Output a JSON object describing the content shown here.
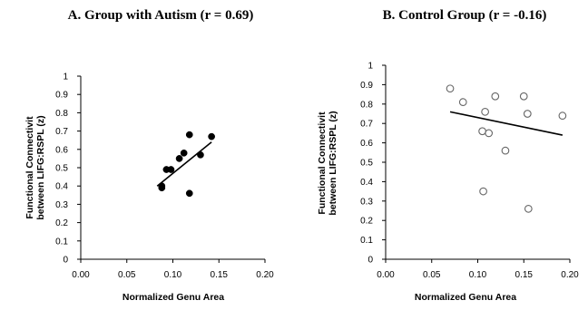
{
  "chart_data": [
    {
      "type": "scatter",
      "title": "A. Group with Autism (r = 0.69)",
      "xlabel": "Normalized Genu Area",
      "ylabel_line1": "Functional Connectivit",
      "ylabel_line2": "between LIFG:RSPL (z)",
      "xlim": [
        0.0,
        0.2
      ],
      "ylim": [
        0,
        1
      ],
      "xticks": [
        "0.00",
        "0.05",
        "0.10",
        "0.15",
        "0.20"
      ],
      "yticks": [
        "0",
        "0.1",
        "0.2",
        "0.3",
        "0.4",
        "0.5",
        "0.6",
        "0.7",
        "0.8",
        "0.9",
        "1"
      ],
      "marker": "filled",
      "points": [
        {
          "x": 0.088,
          "y": 0.4
        },
        {
          "x": 0.088,
          "y": 0.39
        },
        {
          "x": 0.093,
          "y": 0.49
        },
        {
          "x": 0.098,
          "y": 0.49
        },
        {
          "x": 0.107,
          "y": 0.55
        },
        {
          "x": 0.112,
          "y": 0.58
        },
        {
          "x": 0.118,
          "y": 0.68
        },
        {
          "x": 0.118,
          "y": 0.36
        },
        {
          "x": 0.13,
          "y": 0.57
        },
        {
          "x": 0.142,
          "y": 0.67
        }
      ],
      "trendline": {
        "x": [
          0.083,
          0.142
        ],
        "y": [
          0.4,
          0.64
        ]
      }
    },
    {
      "type": "scatter",
      "title": "B. Control Group (r = -0.16)",
      "xlabel": "Normalized Genu Area",
      "ylabel_line1": "Functional Connectivit",
      "ylabel_line2": "between LIFG:RSPL (z)",
      "xlim": [
        0.0,
        0.2
      ],
      "ylim": [
        0,
        1
      ],
      "xticks": [
        "0.00",
        "0.05",
        "0.10",
        "0.15",
        "0.20"
      ],
      "yticks": [
        "0",
        "0.1",
        "0.2",
        "0.3",
        "0.4",
        "0.5",
        "0.6",
        "0.7",
        "0.8",
        "0.9",
        "1"
      ],
      "marker": "open",
      "points": [
        {
          "x": 0.07,
          "y": 0.88
        },
        {
          "x": 0.084,
          "y": 0.81
        },
        {
          "x": 0.105,
          "y": 0.66
        },
        {
          "x": 0.108,
          "y": 0.76
        },
        {
          "x": 0.112,
          "y": 0.65
        },
        {
          "x": 0.119,
          "y": 0.84
        },
        {
          "x": 0.13,
          "y": 0.56
        },
        {
          "x": 0.15,
          "y": 0.84
        },
        {
          "x": 0.154,
          "y": 0.75
        },
        {
          "x": 0.106,
          "y": 0.35
        },
        {
          "x": 0.155,
          "y": 0.26
        },
        {
          "x": 0.192,
          "y": 0.74
        }
      ],
      "trendline": {
        "x": [
          0.07,
          0.192
        ],
        "y": [
          0.76,
          0.64
        ]
      }
    }
  ]
}
